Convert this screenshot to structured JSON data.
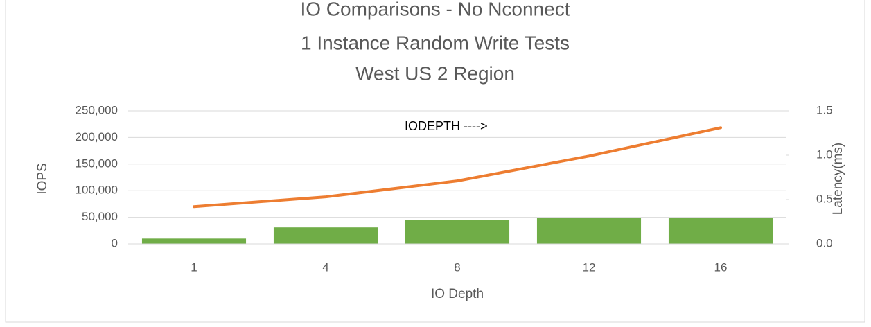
{
  "chart_data": {
    "type": "bar-line",
    "title": [
      "IO Comparisons - No Nconnect",
      "1 Instance Random Write Tests",
      "West US 2 Region"
    ],
    "xlabel": "IO Depth",
    "ylabel": "IOPS",
    "y2label": "Latency(ms)",
    "annotation": "IODEPTH ---->",
    "categories": [
      "1",
      "4",
      "8",
      "12",
      "16"
    ],
    "series": [
      {
        "name": "IOPS",
        "type": "bar",
        "axis": "y",
        "color": "#70ad47",
        "values": [
          10000,
          31000,
          45000,
          48500,
          48500
        ]
      },
      {
        "name": "Latency",
        "type": "line",
        "axis": "y2",
        "color": "#ed7d31",
        "values": [
          0.42,
          0.53,
          0.71,
          0.99,
          1.31
        ]
      }
    ],
    "ylim": [
      0,
      250000
    ],
    "yticks": [
      0,
      {
        "value": 50000,
        "label": "50,000"
      },
      {
        "value": 100000,
        "label": "100,000"
      },
      {
        "value": 150000,
        "label": "150,000"
      },
      {
        "value": 200000,
        "label": "200,000"
      },
      {
        "value": 250000,
        "label": "250,000"
      }
    ],
    "y2lim": [
      0,
      1.5
    ],
    "y2ticks": [
      {
        "value": 0,
        "label": "0.0"
      },
      {
        "value": 0.5,
        "label": "0.5"
      },
      {
        "value": 1,
        "label": "1.0"
      },
      {
        "value": 1.5,
        "label": "1.5"
      }
    ],
    "grid": true
  }
}
